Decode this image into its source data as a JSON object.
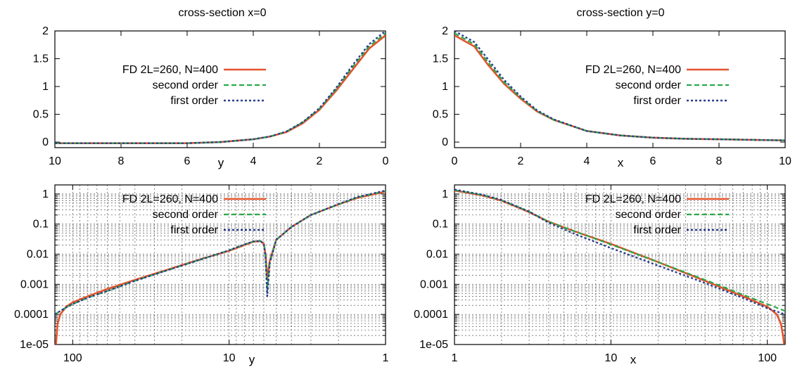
{
  "titles": {
    "top_left": "cross-section x=0",
    "top_right": "cross-section y=0"
  },
  "colors": {
    "fd": "#e4532a",
    "second": "#2aa84a",
    "first": "#2b3f8f",
    "grid": "#555555",
    "frame": "#000000"
  },
  "chart_data": [
    {
      "type": "line",
      "panel": "top-left",
      "title": "cross-section x=0",
      "xlabel": "y",
      "ylabel": "",
      "xlim": [
        10,
        0
      ],
      "ylim": [
        -0.1,
        2
      ],
      "x_reversed": true,
      "grid": false,
      "legend_position": "top-left",
      "x_ticks": [
        10,
        8,
        6,
        4,
        2,
        0
      ],
      "x_tick_labels": [
        "10",
        "8",
        "6",
        "4",
        "2",
        "0"
      ],
      "y_ticks": [
        0,
        0.5,
        1,
        1.5,
        2
      ],
      "y_tick_labels": [
        "0",
        "0.5",
        "1",
        "1.5",
        "2"
      ],
      "series": [
        {
          "name": "FD 2L=260, N=400",
          "style": "fd",
          "x": [
            10,
            8,
            6,
            5,
            4,
            3.5,
            3,
            2.5,
            2,
            1.5,
            1,
            0.5,
            0
          ],
          "y": [
            -0.02,
            -0.02,
            -0.02,
            0,
            0.05,
            0.1,
            0.18,
            0.34,
            0.58,
            0.92,
            1.3,
            1.68,
            1.92
          ]
        },
        {
          "name": "second order",
          "style": "second",
          "x": [
            10,
            8,
            6,
            5,
            4,
            3.5,
            3,
            2.5,
            2,
            1.5,
            1,
            0.5,
            0
          ],
          "y": [
            -0.02,
            -0.02,
            -0.02,
            0,
            0.05,
            0.1,
            0.19,
            0.36,
            0.6,
            0.95,
            1.35,
            1.72,
            1.96
          ]
        },
        {
          "name": "first order",
          "style": "first",
          "x": [
            10,
            8,
            6,
            5,
            4,
            3.5,
            3,
            2.5,
            2,
            1.5,
            1,
            0.5,
            0
          ],
          "y": [
            -0.02,
            -0.02,
            -0.02,
            0,
            0.05,
            0.1,
            0.19,
            0.36,
            0.61,
            0.97,
            1.38,
            1.76,
            2.0
          ]
        }
      ]
    },
    {
      "type": "line",
      "panel": "top-right",
      "title": "cross-section y=0",
      "xlabel": "x",
      "ylabel": "",
      "xlim": [
        0,
        10
      ],
      "ylim": [
        -0.1,
        2
      ],
      "grid": false,
      "legend_position": "top-right",
      "x_ticks": [
        0,
        2,
        4,
        6,
        8,
        10
      ],
      "x_tick_labels": [
        "0",
        "2",
        "4",
        "6",
        "8",
        "10"
      ],
      "y_ticks": [
        0,
        0.5,
        1,
        1.5,
        2
      ],
      "y_tick_labels": [
        "0",
        "0.5",
        "1",
        "1.5",
        "2"
      ],
      "series": [
        {
          "name": "FD 2L=260, N=400",
          "style": "fd",
          "x": [
            0,
            0.6,
            1,
            1.5,
            2,
            2.5,
            3,
            4,
            5,
            6,
            7,
            8,
            9,
            10
          ],
          "y": [
            1.92,
            1.72,
            1.4,
            1.05,
            0.78,
            0.55,
            0.4,
            0.2,
            0.12,
            0.08,
            0.06,
            0.05,
            0.04,
            0.03
          ]
        },
        {
          "name": "second order",
          "style": "second",
          "x": [
            0,
            0.6,
            1,
            1.5,
            2,
            2.5,
            3,
            4,
            5,
            6,
            7,
            8,
            9,
            10
          ],
          "y": [
            1.96,
            1.76,
            1.45,
            1.08,
            0.8,
            0.56,
            0.4,
            0.2,
            0.12,
            0.08,
            0.06,
            0.05,
            0.04,
            0.03
          ]
        },
        {
          "name": "first order",
          "style": "first",
          "x": [
            0,
            0.6,
            1,
            1.5,
            2,
            2.5,
            3,
            4,
            5,
            6,
            7,
            8,
            9,
            10
          ],
          "y": [
            2.0,
            1.8,
            1.5,
            1.12,
            0.82,
            0.57,
            0.41,
            0.2,
            0.12,
            0.08,
            0.06,
            0.05,
            0.04,
            0.03
          ]
        }
      ]
    },
    {
      "type": "line",
      "panel": "bottom-left",
      "title": "",
      "xlabel": "y",
      "ylabel": "",
      "xlim": [
        130,
        1
      ],
      "ylim": [
        1e-05,
        2
      ],
      "x_scale": "log",
      "y_scale": "log",
      "x_reversed": true,
      "grid": true,
      "legend_position": "top-left",
      "x_ticks": [
        100,
        10,
        1
      ],
      "x_tick_labels": [
        "100",
        "10",
        "1"
      ],
      "y_ticks": [
        1e-05,
        0.0001,
        0.001,
        0.01,
        0.1,
        1
      ],
      "y_tick_labels": [
        "1e-05",
        "0.0001",
        "0.001",
        "0.01",
        "0.1",
        "1"
      ],
      "series": [
        {
          "name": "FD 2L=260, N=400",
          "style": "fd",
          "x": [
            128,
            125,
            120,
            110,
            100,
            80,
            60,
            40,
            25,
            15,
            10,
            8,
            7,
            6.3,
            6,
            5.85,
            5.7,
            5.5,
            5,
            4,
            3,
            2,
            1.5,
            1
          ],
          "y": [
            1e-05,
            5e-05,
            0.0001,
            0.00018,
            0.00025,
            0.0004,
            0.0007,
            0.0014,
            0.003,
            0.007,
            0.013,
            0.02,
            0.026,
            0.027,
            0.022,
            0.01,
            0.0015,
            0.006,
            0.03,
            0.08,
            0.2,
            0.45,
            0.75,
            1.2
          ]
        },
        {
          "name": "second order",
          "style": "second",
          "x": [
            130,
            120,
            110,
            100,
            80,
            60,
            40,
            25,
            15,
            10,
            8,
            7,
            6.3,
            6,
            5.85,
            5.7,
            5.5,
            5,
            4,
            3,
            2,
            1.5,
            1
          ],
          "y": [
            0.0001,
            0.00013,
            0.00017,
            0.00022,
            0.00036,
            0.0006,
            0.0013,
            0.0029,
            0.0068,
            0.0135,
            0.021,
            0.0265,
            0.0275,
            0.022,
            0.009,
            0.0006,
            0.005,
            0.03,
            0.08,
            0.2,
            0.45,
            0.78,
            1.25
          ]
        },
        {
          "name": "first order",
          "style": "first",
          "x": [
            130,
            120,
            110,
            100,
            80,
            60,
            40,
            25,
            15,
            10,
            8,
            7,
            6.3,
            6,
            5.85,
            5.7,
            5.5,
            5,
            4,
            3,
            2,
            1.5,
            1
          ],
          "y": [
            0.0001,
            0.00013,
            0.00017,
            0.00022,
            0.00036,
            0.0006,
            0.0013,
            0.0029,
            0.0068,
            0.0135,
            0.021,
            0.0265,
            0.0275,
            0.022,
            0.008,
            0.0004,
            0.005,
            0.03,
            0.08,
            0.2,
            0.46,
            0.8,
            1.3
          ]
        }
      ]
    },
    {
      "type": "line",
      "panel": "bottom-right",
      "title": "",
      "xlabel": "x",
      "ylabel": "",
      "xlim": [
        1,
        130
      ],
      "ylim": [
        1e-05,
        2
      ],
      "x_scale": "log",
      "y_scale": "log",
      "grid": true,
      "legend_position": "top-right",
      "x_ticks": [
        1,
        10,
        100
      ],
      "x_tick_labels": [
        "1",
        "10",
        "100"
      ],
      "y_ticks": [
        1e-05,
        0.0001,
        0.001,
        0.01,
        0.1,
        1
      ],
      "y_tick_labels": [
        "1e-05",
        "0.0001",
        "0.001",
        "0.01",
        "0.1",
        "1"
      ],
      "series": [
        {
          "name": "FD 2L=260, N=400",
          "style": "fd",
          "x": [
            1,
            1.5,
            2,
            3,
            4,
            6,
            10,
            20,
            40,
            70,
            100,
            115,
            122,
            126,
            128
          ],
          "y": [
            1.3,
            0.9,
            0.6,
            0.25,
            0.12,
            0.055,
            0.022,
            0.0055,
            0.0013,
            0.0004,
            0.00018,
            0.0001,
            5e-05,
            2e-05,
            1e-05
          ]
        },
        {
          "name": "second order",
          "style": "second",
          "x": [
            1,
            1.5,
            2,
            3,
            4,
            6,
            10,
            20,
            40,
            70,
            100,
            130
          ],
          "y": [
            1.35,
            0.92,
            0.62,
            0.26,
            0.12,
            0.055,
            0.021,
            0.0055,
            0.0014,
            0.00045,
            0.00022,
            0.00013
          ]
        },
        {
          "name": "first order",
          "style": "first",
          "x": [
            1,
            1.5,
            2,
            3,
            4,
            6,
            10,
            20,
            40,
            70,
            100,
            130
          ],
          "y": [
            1.4,
            0.95,
            0.63,
            0.26,
            0.11,
            0.045,
            0.016,
            0.0042,
            0.0011,
            0.00035,
            0.00016,
            0.0001
          ]
        }
      ]
    }
  ]
}
